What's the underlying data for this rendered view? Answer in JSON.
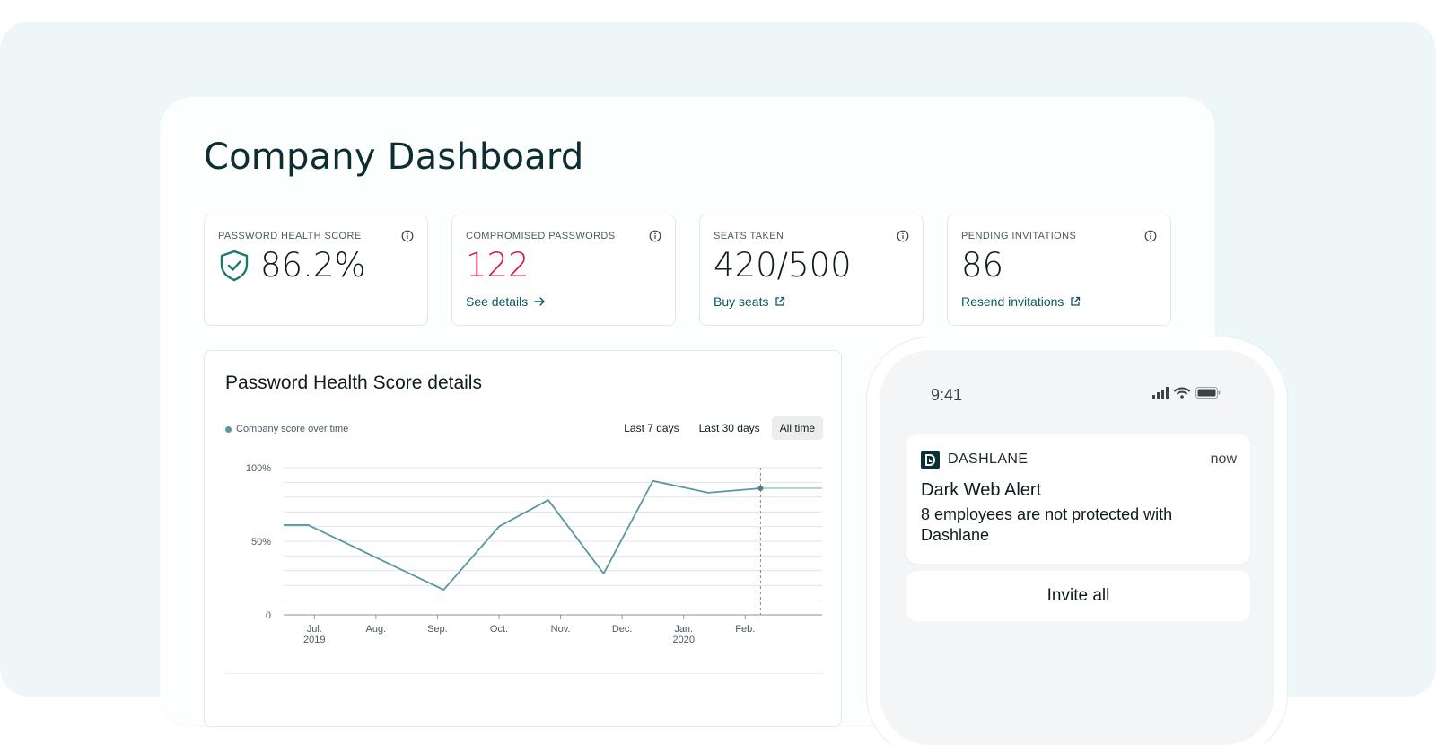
{
  "page": {
    "title": "Company Dashboard"
  },
  "colors": {
    "accent": "#0b5661",
    "alert": "#d11a44",
    "line": "#5a97a0",
    "background": "#eef7f8"
  },
  "stats": [
    {
      "label": "PASSWORD HEALTH SCORE",
      "value": "86.2%",
      "icon": "shield-check-icon",
      "link": ""
    },
    {
      "label": "COMPROMISED PASSWORDS",
      "value": "122",
      "link": "See details",
      "link_icon": "arrow-right-icon"
    },
    {
      "label": "SEATS TAKEN",
      "value": "420/500",
      "link": "Buy seats",
      "link_icon": "external-link-icon"
    },
    {
      "label": "PENDING INVITATIONS",
      "value": "86",
      "link": "Resend invitations",
      "link_icon": "external-link-icon"
    }
  ],
  "chart": {
    "title": "Password Health Score details",
    "legend": "Company score over time",
    "ranges": [
      "Last 7 days",
      "Last 30 days",
      "All time"
    ],
    "active_range": "All time"
  },
  "chart_data": {
    "type": "line",
    "title": "Password Health Score details",
    "series": [
      {
        "name": "Company score over time",
        "points": [
          {
            "x": 0.0,
            "y": 61
          },
          {
            "x": 0.4,
            "y": 61
          },
          {
            "x": 1.8,
            "y": 33
          },
          {
            "x": 2.6,
            "y": 17
          },
          {
            "x": 3.5,
            "y": 60
          },
          {
            "x": 4.3,
            "y": 78
          },
          {
            "x": 5.2,
            "y": 28
          },
          {
            "x": 6.0,
            "y": 91
          },
          {
            "x": 6.9,
            "y": 83
          },
          {
            "x": 7.75,
            "y": 86
          },
          {
            "x": 8.75,
            "y": 86
          }
        ]
      }
    ],
    "current_point": {
      "x": 7.75,
      "y": 86
    },
    "x_ticks": [
      {
        "x": 0.5,
        "label": "Jul.",
        "sub": "2019"
      },
      {
        "x": 1.5,
        "label": "Aug.",
        "sub": ""
      },
      {
        "x": 2.5,
        "label": "Sep.",
        "sub": ""
      },
      {
        "x": 3.5,
        "label": "Oct.",
        "sub": ""
      },
      {
        "x": 4.5,
        "label": "Nov.",
        "sub": ""
      },
      {
        "x": 5.5,
        "label": "Dec.",
        "sub": ""
      },
      {
        "x": 6.5,
        "label": "Jan.",
        "sub": "2020"
      },
      {
        "x": 7.5,
        "label": "Feb.",
        "sub": ""
      }
    ],
    "xlim": [
      0,
      8.75
    ],
    "y_ticks": [
      {
        "y": 100,
        "label": "100%"
      },
      {
        "y": 50,
        "label": "50%"
      },
      {
        "y": 0,
        "label": "0"
      }
    ],
    "ylim": [
      0,
      100
    ],
    "gridlines_y": [
      10,
      20,
      30,
      40,
      50,
      60,
      70,
      80,
      90,
      100
    ],
    "grid": true
  },
  "phone": {
    "time": "9:41",
    "notification": {
      "app": "DASHLANE",
      "time": "now",
      "title": "Dark Web Alert",
      "body": "8 employees are not protected with Dashlane"
    },
    "action": "Invite all"
  }
}
